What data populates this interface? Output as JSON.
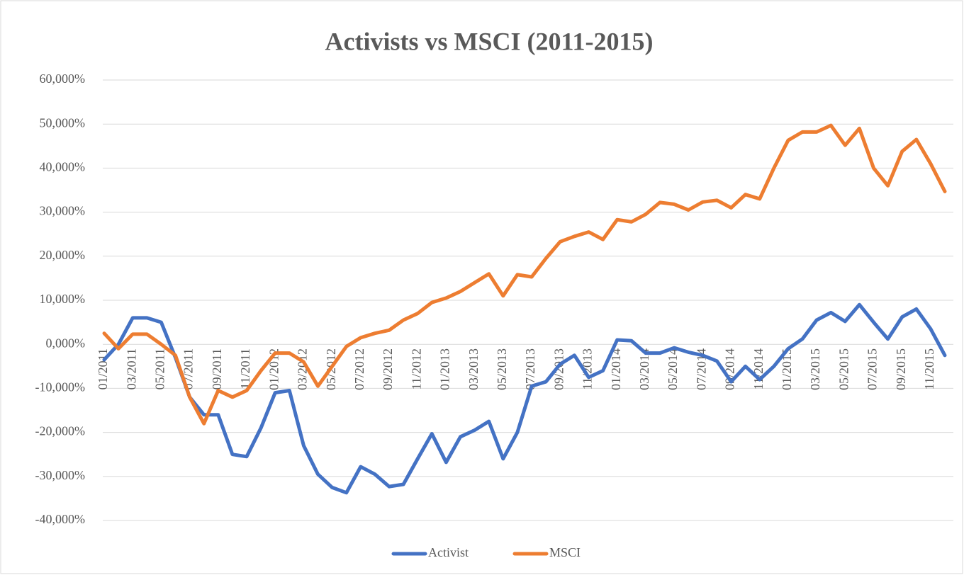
{
  "chart_data": {
    "type": "line",
    "title": "Activists vs MSCI (2011-2015)",
    "categories": [
      "01/2011",
      null,
      "03/2011",
      null,
      "05/2011",
      null,
      "07/2011",
      null,
      "09/2011",
      null,
      "11/2011",
      null,
      "01/2012",
      null,
      "03/2012",
      null,
      "05/2012",
      null,
      "07/2012",
      null,
      "09/2012",
      null,
      "11/2012",
      null,
      "01/2013",
      null,
      "03/2013",
      null,
      "05/2013",
      null,
      "07/2013",
      null,
      "09/2013",
      null,
      "11/2013",
      null,
      "01/2014",
      null,
      "03/2014",
      null,
      "05/2014",
      null,
      "07/2014",
      null,
      "09/2014",
      null,
      "11/2014",
      null,
      "01/2015",
      null,
      "03/2015",
      null,
      "05/2015",
      null,
      "07/2015",
      null,
      "09/2015",
      null,
      "11/2015",
      null
    ],
    "series": [
      {
        "name": "Activist",
        "color": "#4472c4",
        "values": [
          -3.5,
          0,
          6,
          6,
          5,
          -3,
          -12,
          -16,
          -16,
          -25,
          -25.5,
          -19,
          -11,
          -10.5,
          -23,
          -29.5,
          -32.5,
          -33.7,
          -27.8,
          -29.5,
          -32.3,
          -31.8,
          -26,
          -20.3,
          -26.8,
          -21,
          -19.5,
          -17.5,
          -26,
          -20,
          -9.5,
          -8.5,
          -4.5,
          -2.5,
          -7.5,
          -6,
          1,
          0.8,
          -2,
          -2,
          -0.8,
          -1.8,
          -2.5,
          -3.8,
          -8.5,
          -5,
          -8,
          -5,
          -1,
          1.2,
          5.5,
          7.2,
          5.2,
          9,
          5,
          1.2,
          6.2,
          8,
          3.5,
          -2.5
        ]
      },
      {
        "name": "MSCI",
        "color": "#ed7d31",
        "values": [
          2.5,
          -1,
          2.3,
          2.3,
          0,
          -2.5,
          -12,
          -18,
          -10.5,
          -12,
          -10.5,
          -6,
          -2,
          -2,
          -4,
          -9.5,
          -5,
          -0.5,
          1.5,
          2.5,
          3.2,
          5.5,
          7,
          9.5,
          10.5,
          12,
          14,
          16,
          11,
          15.8,
          15.3,
          19.5,
          23.3,
          24.5,
          25.5,
          23.8,
          28.3,
          27.8,
          29.5,
          32.2,
          31.8,
          30.5,
          32.3,
          32.7,
          31,
          34,
          33,
          40,
          46.3,
          48.2,
          48.2,
          49.7,
          45.2,
          49,
          40,
          36,
          43.8,
          46.5,
          41,
          34.7
        ]
      }
    ],
    "ylim": [
      -40,
      60
    ],
    "yticks": [
      {
        "value": -40,
        "label": "-40,000%"
      },
      {
        "value": -30,
        "label": "-30,000%"
      },
      {
        "value": -20,
        "label": "-20,000%"
      },
      {
        "value": -10,
        "label": "-10,000%"
      },
      {
        "value": 0,
        "label": "0,000%"
      },
      {
        "value": 10,
        "label": "10,000%"
      },
      {
        "value": 20,
        "label": "20,000%"
      },
      {
        "value": 30,
        "label": "30,000%"
      },
      {
        "value": 40,
        "label": "40,000%"
      },
      {
        "value": 50,
        "label": "50,000%"
      },
      {
        "value": 60,
        "label": "60,000%"
      }
    ],
    "grid": true,
    "legend": "bottom"
  }
}
